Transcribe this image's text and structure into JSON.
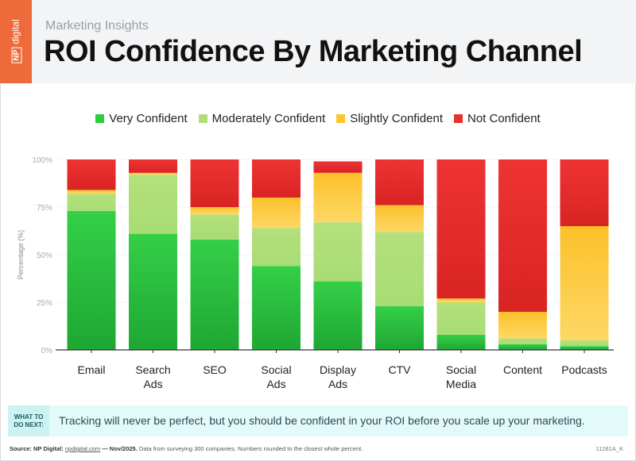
{
  "header": {
    "logo_text": "NP digital",
    "logo_np": "NP",
    "logo_word": "digital",
    "subtitle": "Marketing Insights",
    "title": "ROI Confidence By Marketing Channel"
  },
  "chart_data": {
    "type": "bar",
    "stacked": true,
    "title": "ROI Confidence By Marketing Channel",
    "ylabel": "Percentage (%)",
    "xlabel": "",
    "ylim": [
      0,
      100
    ],
    "yticks": [
      "0%",
      "25%",
      "50%",
      "75%",
      "100%"
    ],
    "grid": true,
    "legend_position": "top",
    "categories": [
      [
        "Email"
      ],
      [
        "Search",
        "Ads"
      ],
      [
        "SEO"
      ],
      [
        "Social",
        "Ads"
      ],
      [
        "Display",
        "Ads"
      ],
      [
        "CTV"
      ],
      [
        "Social",
        "Media"
      ],
      [
        "Content"
      ],
      [
        "Podcasts"
      ]
    ],
    "series": [
      {
        "name": "Very Confident",
        "color": "#2ecc40",
        "values": [
          73,
          61,
          58,
          44,
          36,
          23,
          8,
          3,
          2
        ]
      },
      {
        "name": "Moderately Confident",
        "color": "#b0df7a",
        "values": [
          9,
          31,
          13,
          20,
          31,
          39,
          17,
          3,
          3
        ]
      },
      {
        "name": "Slightly Confident",
        "color": "#fcc62e",
        "values": [
          2,
          1,
          4,
          16,
          26,
          14,
          2,
          14,
          60
        ]
      },
      {
        "name": "Not Confident",
        "color": "#e8302e",
        "values": [
          16,
          7,
          25,
          20,
          6,
          24,
          73,
          80,
          35
        ]
      }
    ]
  },
  "callout": {
    "tag_line1": "WHAT TO",
    "tag_line2": "DO NEXT:",
    "text": "Tracking will never be perfect, but you should be confident in your ROI before you scale up your marketing."
  },
  "footer": {
    "source_label": "Source: NP Digital:",
    "source_link": "npdigital.com",
    "source_date": "— Nov/2025.",
    "source_note": "Data from surveying 300 companies. Numbers rounded to the closest whole percent.",
    "code": "11281A_K"
  }
}
